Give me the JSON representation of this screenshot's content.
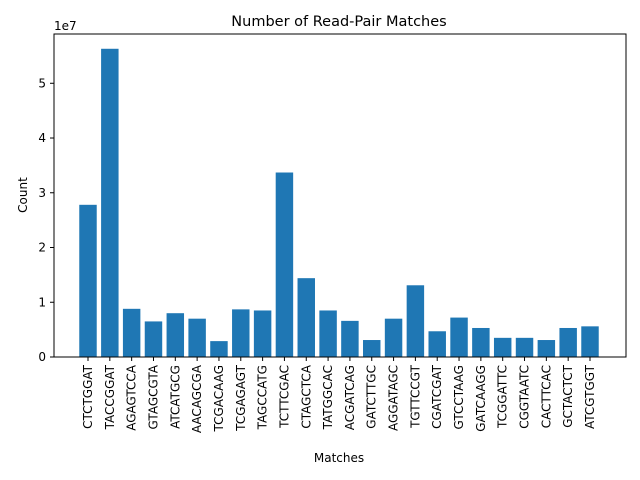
{
  "chart_data": {
    "type": "bar",
    "title": "Number of Read-Pair Matches",
    "xlabel": "Matches",
    "ylabel": "Count",
    "y_scale_label": "1e7",
    "ylim": [
      0,
      5.9
    ],
    "y_ticks": [
      0,
      1,
      2,
      3,
      4,
      5
    ],
    "y_tick_labels": [
      "0",
      "1",
      "2",
      "3",
      "4",
      "5"
    ],
    "grid": false,
    "bar_color": "#1f77b4",
    "categories": [
      "CTCTGGAT",
      "TACCGGAT",
      "AGAGTCCA",
      "GTAGCGTA",
      "ATCATGCG",
      "AACAGCGA",
      "TCGACAAG",
      "TCGAGAGT",
      "TAGCCATG",
      "TCTTCGAC",
      "CTAGCTCA",
      "TATGGCAC",
      "ACGATCAG",
      "GATCTTGC",
      "AGGATAGC",
      "TGTTCCGT",
      "CGATCGAT",
      "GTCCTAAG",
      "GATCAAGG",
      "TCGGATTC",
      "CGGTAATC",
      "CACTTCAC",
      "GCTACTCT",
      "ATCGTGGT"
    ],
    "values": [
      2.78,
      5.63,
      0.88,
      0.65,
      0.8,
      0.7,
      0.29,
      0.87,
      0.85,
      3.37,
      1.44,
      0.85,
      0.66,
      0.31,
      0.7,
      1.31,
      0.47,
      0.72,
      0.53,
      0.35,
      0.35,
      0.31,
      0.53,
      0.56
    ]
  }
}
